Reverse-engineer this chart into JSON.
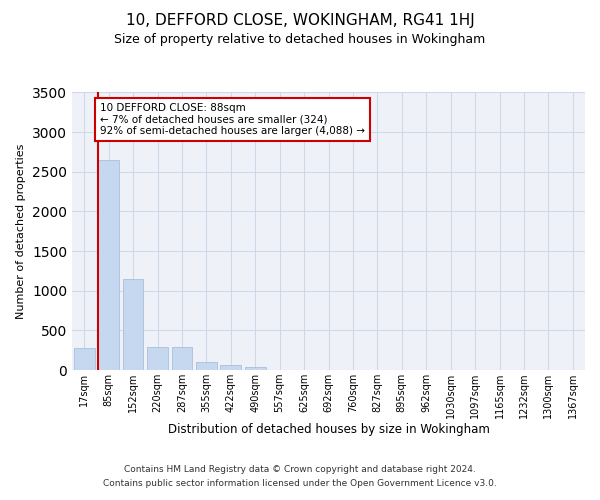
{
  "title": "10, DEFFORD CLOSE, WOKINGHAM, RG41 1HJ",
  "subtitle": "Size of property relative to detached houses in Wokingham",
  "xlabel": "Distribution of detached houses by size in Wokingham",
  "ylabel": "Number of detached properties",
  "bar_color": "#c5d8f0",
  "bar_edge_color": "#a0b8d8",
  "grid_color": "#d0d8e8",
  "background_color": "#eef2f8",
  "categories": [
    "17sqm",
    "85sqm",
    "152sqm",
    "220sqm",
    "287sqm",
    "355sqm",
    "422sqm",
    "490sqm",
    "557sqm",
    "625sqm",
    "692sqm",
    "760sqm",
    "827sqm",
    "895sqm",
    "962sqm",
    "1030sqm",
    "1097sqm",
    "1165sqm",
    "1232sqm",
    "1300sqm",
    "1367sqm"
  ],
  "values": [
    280,
    2650,
    1150,
    290,
    290,
    95,
    60,
    40,
    0,
    0,
    0,
    0,
    0,
    0,
    0,
    0,
    0,
    0,
    0,
    0,
    0
  ],
  "ylim": [
    0,
    3500
  ],
  "yticks": [
    0,
    500,
    1000,
    1500,
    2000,
    2500,
    3000,
    3500
  ],
  "annotation_text": "10 DEFFORD CLOSE: 88sqm\n← 7% of detached houses are smaller (324)\n92% of semi-detached houses are larger (4,088) →",
  "annotation_box_color": "#ffffff",
  "annotation_box_edge": "#cc0000",
  "property_line_color": "#cc0000",
  "footer_line1": "Contains HM Land Registry data © Crown copyright and database right 2024.",
  "footer_line2": "Contains public sector information licensed under the Open Government Licence v3.0."
}
